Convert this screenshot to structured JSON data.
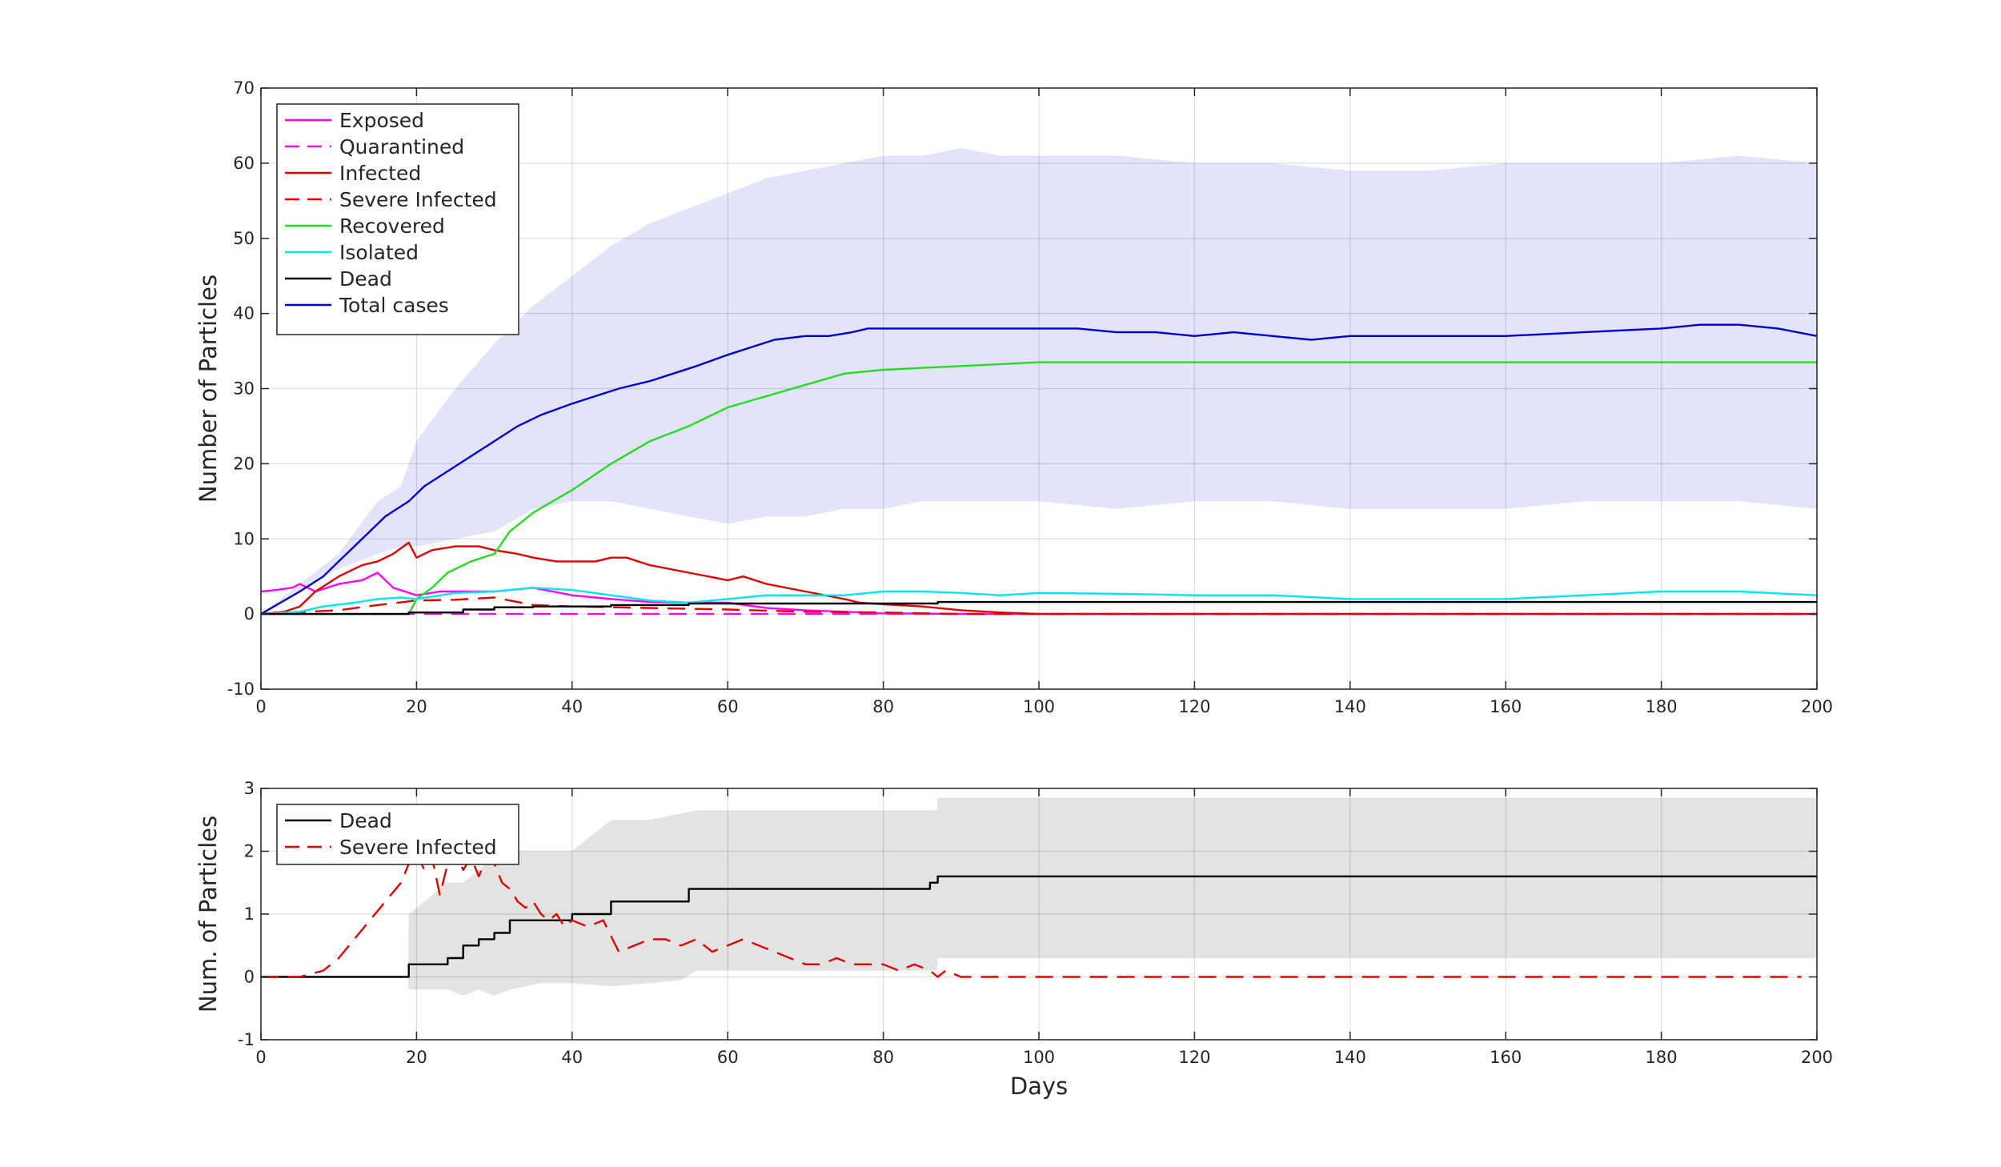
{
  "chart_data": [
    {
      "type": "line",
      "xlabel": "",
      "ylabel": "Number of Particles",
      "xlim": [
        0,
        200
      ],
      "ylim": [
        -10,
        70
      ],
      "xticks": [
        "0",
        "20",
        "40",
        "60",
        "80",
        "100",
        "120",
        "140",
        "160",
        "180",
        "200"
      ],
      "yticks": [
        "-10",
        "0",
        "10",
        "20",
        "30",
        "40",
        "50",
        "60",
        "70"
      ],
      "grid": true,
      "legend_position": "top-left",
      "band": {
        "color": "#e3e3fa",
        "x": [
          0,
          5,
          10,
          15,
          18,
          20,
          25,
          30,
          35,
          40,
          45,
          50,
          55,
          60,
          65,
          70,
          75,
          80,
          85,
          90,
          95,
          100,
          110,
          120,
          130,
          140,
          150,
          160,
          170,
          180,
          190,
          200
        ],
        "upper": [
          0,
          4,
          8,
          15,
          17,
          23,
          30,
          36,
          41,
          45,
          49,
          52,
          54,
          56,
          58,
          59,
          60,
          61,
          61,
          62,
          61,
          61,
          61,
          60,
          60,
          59,
          59,
          60,
          60,
          60,
          61,
          60
        ],
        "lower": [
          0,
          3,
          6,
          8,
          9,
          9,
          10,
          11,
          14,
          15,
          15,
          14,
          13,
          12,
          13,
          13,
          14,
          14,
          15,
          15,
          15,
          15,
          14,
          15,
          15,
          14,
          14,
          14,
          15,
          15,
          15,
          14
        ]
      },
      "series": [
        {
          "name": "Exposed",
          "color": "#ff00ff",
          "dash": "solid",
          "x": [
            0,
            2,
            4,
            5,
            7,
            10,
            13,
            15,
            17,
            20,
            23,
            25,
            30,
            35,
            40,
            45,
            50,
            55,
            60,
            65,
            70,
            75,
            80,
            90,
            100,
            120,
            140,
            160,
            180,
            200
          ],
          "y": [
            3,
            3.2,
            3.5,
            4,
            3,
            4,
            4.5,
            5.5,
            3.5,
            2.5,
            3,
            3,
            3,
            3.5,
            2.5,
            2,
            1.6,
            1.5,
            1.5,
            0.8,
            0.5,
            0.3,
            0.1,
            0,
            0,
            0,
            0,
            0,
            0,
            0
          ]
        },
        {
          "name": "Quarantined",
          "color": "#ff00ff",
          "dash": "dashed",
          "x": [
            0,
            200
          ],
          "y": [
            0,
            0
          ]
        },
        {
          "name": "Infected",
          "color": "#e00000",
          "dash": "solid",
          "x": [
            0,
            3,
            5,
            7,
            10,
            13,
            15,
            17,
            19,
            20,
            22,
            25,
            28,
            30,
            33,
            35,
            38,
            40,
            43,
            45,
            47,
            50,
            55,
            60,
            62,
            65,
            70,
            75,
            77,
            80,
            85,
            90,
            95,
            100,
            200
          ],
          "y": [
            0,
            0.3,
            1,
            3,
            5,
            6.5,
            7,
            8,
            9.5,
            7.5,
            8.5,
            9,
            9,
            8.5,
            8,
            7.5,
            7,
            7,
            7,
            7.5,
            7.5,
            6.5,
            5.5,
            4.5,
            5,
            4,
            3,
            2,
            1.5,
            1.3,
            1,
            0.5,
            0.2,
            0,
            0
          ]
        },
        {
          "name": "Severe Infected",
          "color": "#e00000",
          "dash": "dashed",
          "x": [
            0,
            10,
            15,
            20,
            25,
            30,
            35,
            40,
            50,
            60,
            70,
            80,
            90,
            100,
            200
          ],
          "y": [
            0,
            0.5,
            1.2,
            1.8,
            1.9,
            2.2,
            1.2,
            1,
            0.8,
            0.6,
            0.3,
            0.2,
            0,
            0,
            0
          ]
        },
        {
          "name": "Recovered",
          "color": "#22dd22",
          "dash": "solid",
          "x": [
            0,
            19,
            20,
            22,
            24,
            27,
            30,
            32,
            35,
            40,
            45,
            50,
            55,
            60,
            65,
            70,
            75,
            80,
            90,
            100,
            120,
            140,
            160,
            180,
            200
          ],
          "y": [
            0,
            0,
            2,
            3.5,
            5.5,
            7,
            8,
            11,
            13.5,
            16.5,
            20,
            23,
            25,
            27.5,
            29,
            30.5,
            32,
            32.5,
            33,
            33.5,
            33.5,
            33.5,
            33.5,
            33.5,
            33.5
          ]
        },
        {
          "name": "Isolated",
          "color": "#00e5ee",
          "dash": "solid",
          "x": [
            0,
            5,
            8,
            12,
            15,
            18,
            20,
            25,
            30,
            35,
            40,
            45,
            50,
            55,
            60,
            65,
            70,
            75,
            80,
            85,
            90,
            95,
            100,
            110,
            120,
            130,
            140,
            150,
            160,
            170,
            180,
            190,
            200
          ],
          "y": [
            0,
            0.3,
            1,
            1.5,
            2,
            2.2,
            2,
            2.8,
            3,
            3.5,
            3.2,
            2.5,
            1.8,
            1.5,
            2,
            2.5,
            2.5,
            2.5,
            3,
            3,
            2.8,
            2.5,
            2.8,
            2.7,
            2.5,
            2.5,
            2,
            2,
            2,
            2.5,
            3,
            3,
            2.5
          ]
        },
        {
          "name": "Dead",
          "color": "#000000",
          "dash": "solid",
          "x": [
            0,
            19,
            19,
            26,
            26,
            30,
            30,
            35,
            35,
            45,
            45,
            55,
            55,
            87,
            87,
            200
          ],
          "y": [
            0,
            0,
            0.2,
            0.2,
            0.6,
            0.6,
            0.9,
            0.9,
            1,
            1,
            1.2,
            1.2,
            1.4,
            1.4,
            1.6,
            1.6
          ]
        },
        {
          "name": "Total cases",
          "color": "#0000cc",
          "dash": "solid",
          "x": [
            0,
            5,
            8,
            10,
            13,
            16,
            19,
            21,
            24,
            27,
            30,
            33,
            36,
            40,
            43,
            46,
            50,
            53,
            56,
            60,
            63,
            66,
            70,
            73,
            76,
            78,
            80,
            85,
            90,
            95,
            100,
            105,
            110,
            115,
            120,
            125,
            130,
            135,
            140,
            150,
            160,
            170,
            180,
            185,
            190,
            195,
            200
          ],
          "y": [
            0,
            3,
            5,
            7,
            10,
            13,
            15,
            17,
            19,
            21,
            23,
            25,
            26.5,
            28,
            29,
            30,
            31,
            32,
            33,
            34.5,
            35.5,
            36.5,
            37,
            37,
            37.5,
            38,
            38,
            38,
            38,
            38,
            38,
            38,
            37.5,
            37.5,
            37,
            37.5,
            37,
            36.5,
            37,
            37,
            37,
            37.5,
            38,
            38.5,
            38.5,
            38,
            37
          ]
        }
      ]
    },
    {
      "type": "line",
      "xlabel": "Days",
      "ylabel": "Num. of Particles",
      "xlim": [
        0,
        200
      ],
      "ylim": [
        -1,
        3
      ],
      "xticks": [
        "0",
        "20",
        "40",
        "60",
        "80",
        "100",
        "120",
        "140",
        "160",
        "180",
        "200"
      ],
      "yticks": [
        "-1",
        "0",
        "1",
        "2",
        "3"
      ],
      "grid": true,
      "legend_position": "top-left",
      "band": {
        "color": "#e3e3e3",
        "x": [
          0,
          18.9,
          19,
          24,
          26,
          28,
          30,
          32,
          36,
          40,
          45,
          50,
          54,
          56,
          60,
          70,
          80,
          86.9,
          87,
          100,
          120,
          140,
          160,
          180,
          200
        ],
        "upper": [
          0,
          0,
          1,
          1.5,
          1.5,
          1.7,
          1.9,
          2,
          2,
          2,
          2.5,
          2.5,
          2.6,
          2.65,
          2.65,
          2.65,
          2.65,
          2.65,
          2.85,
          2.85,
          2.85,
          2.85,
          2.85,
          2.85,
          2.85
        ],
        "lower": [
          0,
          0,
          -0.2,
          -0.2,
          -0.3,
          -0.2,
          -0.3,
          -0.2,
          -0.1,
          -0.1,
          -0.15,
          -0.1,
          -0.05,
          0.1,
          0.1,
          0.1,
          0.1,
          0.1,
          0.3,
          0.3,
          0.3,
          0.3,
          0.3,
          0.3,
          0.3
        ]
      },
      "series": [
        {
          "name": "Dead",
          "color": "#000000",
          "dash": "solid",
          "x": [
            0,
            19,
            19,
            24,
            24,
            26,
            26,
            28,
            28,
            30,
            30,
            32,
            32,
            36,
            36,
            40,
            40,
            45,
            45,
            50,
            50,
            55,
            55,
            60,
            60,
            70,
            70,
            80,
            80,
            86,
            86,
            87,
            87,
            200
          ],
          "y": [
            0,
            0,
            0.2,
            0.2,
            0.3,
            0.3,
            0.5,
            0.5,
            0.6,
            0.6,
            0.7,
            0.7,
            0.9,
            0.9,
            0.9,
            0.9,
            1,
            1,
            1.2,
            1.2,
            1.2,
            1.2,
            1.4,
            1.4,
            1.4,
            1.4,
            1.4,
            1.4,
            1.4,
            1.4,
            1.5,
            1.5,
            1.6,
            1.6
          ]
        },
        {
          "name": "Severe Infected",
          "color": "#e00000",
          "dash": "dashed",
          "x": [
            0,
            5,
            8,
            10,
            12,
            14,
            16,
            18,
            19,
            20,
            21,
            22,
            23,
            24,
            25,
            26,
            27,
            28,
            29,
            30,
            31,
            32,
            33,
            34,
            35,
            36,
            37,
            38,
            39,
            40,
            42,
            44,
            46,
            48,
            50,
            52,
            54,
            56,
            58,
            60,
            62,
            64,
            66,
            68,
            70,
            72,
            74,
            76,
            78,
            80,
            82,
            84,
            86,
            87,
            88,
            90,
            92,
            94,
            96,
            100,
            120,
            140,
            160,
            180,
            198
          ],
          "y": [
            0,
            0,
            0.1,
            0.3,
            0.6,
            0.9,
            1.2,
            1.5,
            1.8,
            2,
            1.7,
            1.9,
            1.3,
            1.8,
            2,
            1.7,
            1.9,
            1.6,
            1.9,
            1.8,
            1.5,
            1.4,
            1.2,
            1.1,
            1.2,
            1.0,
            0.9,
            1.0,
            0.8,
            0.9,
            0.8,
            0.9,
            0.4,
            0.5,
            0.6,
            0.6,
            0.5,
            0.6,
            0.4,
            0.5,
            0.6,
            0.5,
            0.4,
            0.3,
            0.2,
            0.2,
            0.3,
            0.2,
            0.2,
            0.2,
            0.1,
            0.2,
            0.1,
            0,
            0.1,
            0,
            0,
            0,
            0,
            0,
            0,
            0,
            0,
            0,
            0
          ]
        }
      ]
    }
  ]
}
